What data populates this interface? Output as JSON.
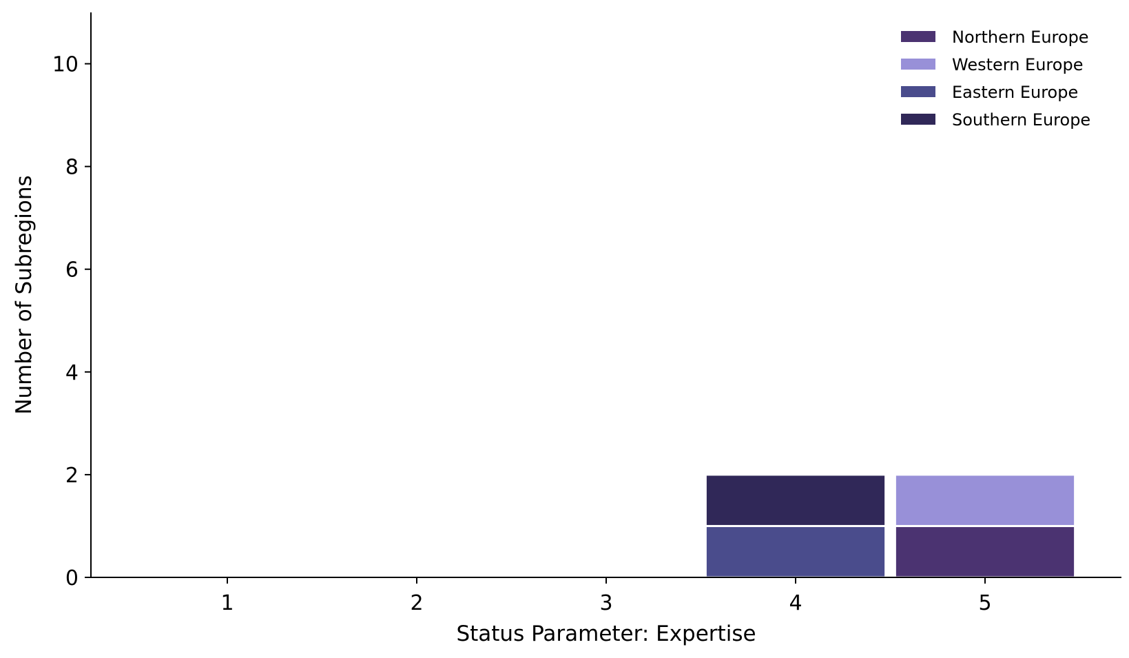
{
  "chart_data": {
    "type": "bar",
    "stacked": true,
    "xlabel": "Status Parameter: Expertise",
    "ylabel": "Number of Subregions",
    "categories": [
      1,
      2,
      3,
      4,
      5
    ],
    "xlim": [
      0.28,
      5.72
    ],
    "ylim": [
      0,
      11
    ],
    "yticks": [
      0,
      2,
      4,
      6,
      8,
      10
    ],
    "grid": false,
    "legend_position": "top-right",
    "series": [
      {
        "name": "Northern Europe",
        "color": "#4b3371",
        "values": [
          0,
          0,
          0,
          0,
          1
        ]
      },
      {
        "name": "Western Europe",
        "color": "#9890d8",
        "values": [
          0,
          0,
          0,
          0,
          1
        ]
      },
      {
        "name": "Eastern Europe",
        "color": "#4a4c8c",
        "values": [
          0,
          0,
          0,
          1,
          0
        ]
      },
      {
        "name": "Southern Europe",
        "color": "#302858",
        "values": [
          0,
          0,
          0,
          1,
          0
        ]
      }
    ]
  }
}
